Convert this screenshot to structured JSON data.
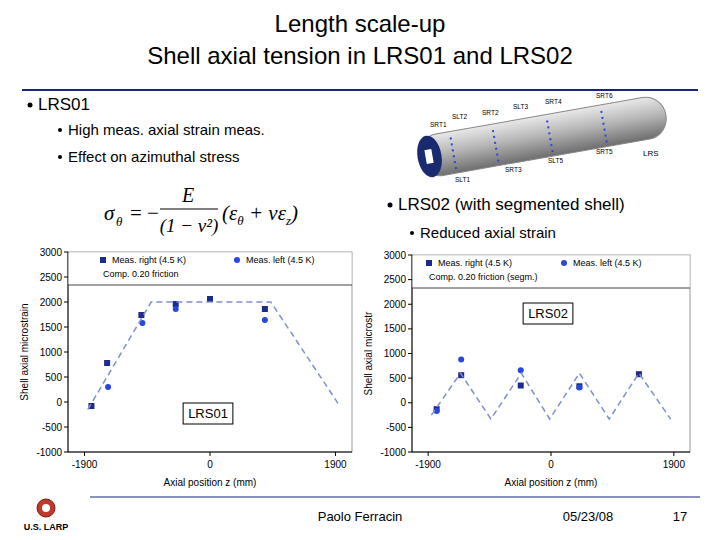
{
  "slide": {
    "title": [
      "Length scale-up",
      "Shell axial tension in LRS01 and LRS02"
    ],
    "bullets": [
      {
        "text": "LRS01",
        "sub": [
          "High meas. axial strain meas.",
          "Effect on azimuthal stress"
        ]
      },
      {
        "text": "LRS02 (with segmented shell)",
        "sub": [
          "Reduced axial strain"
        ]
      }
    ],
    "formula": {
      "lhs": "σ",
      "lhs_sub": "θ",
      "sign": "= −",
      "num": "E",
      "den": "(1 − ν²)",
      "rhs": [
        "(ε",
        "θ",
        " + νε",
        "z",
        ")"
      ]
    },
    "cylinder_labels": [
      "SRT1",
      "SLT2",
      "SRT2",
      "SLT3",
      "SRT4",
      "SRT6",
      "SLT1",
      "SRT3",
      "SLT5",
      "SRT5"
    ],
    "cylinder_tag": "LRS",
    "logo": "U.S. LARP",
    "author": "Paolo Ferracin",
    "date": "05/23/08",
    "page": "17"
  },
  "chart_data": [
    {
      "type": "scatter",
      "title": "LRS01",
      "x_label": "Axial position z (mm)",
      "y_label": "Shell axial microstrain",
      "xlim": [
        -2150,
        2150
      ],
      "xticks": [
        -1900,
        0,
        1900
      ],
      "ylim": [
        -1000,
        3000
      ],
      "yticks": [
        -1000,
        -500,
        0,
        500,
        1000,
        1500,
        2000,
        2500,
        3000
      ],
      "grid": false,
      "legend": "top",
      "series": [
        {
          "name": "Meas. right (4.5 K)",
          "color": "#1f2a8f",
          "marker": "square",
          "x": [
            -1795,
            -1558,
            -1039,
            -519,
            0,
            831
          ],
          "values": [
            -80,
            780,
            1740,
            1960,
            2060,
            1860
          ]
        },
        {
          "name": "Meas. left (4.5 K)",
          "color": "#2846e0",
          "marker": "circle",
          "x": [
            -1543,
            -1024,
            -519,
            831
          ],
          "values": [
            300,
            1580,
            1860,
            1640
          ]
        },
        {
          "name": "Comp. 0.20 friction",
          "type": "line",
          "line_style": "dashed",
          "color": "#7f8fd0",
          "x": [
            -1850,
            -890,
            920,
            1950
          ],
          "values": [
            -150,
            2000,
            2000,
            -50
          ]
        }
      ]
    },
    {
      "type": "scatter",
      "title": "LRS02",
      "x_label": "Axial position z (mm)",
      "y_label": "Shell axial microstr",
      "xlim": [
        -2150,
        2150
      ],
      "xticks": [
        -1900,
        0,
        1900
      ],
      "ylim": [
        -1000,
        3000
      ],
      "yticks": [
        -1000,
        -500,
        0,
        500,
        1000,
        1500,
        2000,
        2500,
        3000
      ],
      "grid": false,
      "legend": "top",
      "series": [
        {
          "name": "Meas. right (4.5 K)",
          "color": "#1f2a8f",
          "marker": "square",
          "x": [
            -1769,
            -1389,
            -468,
            439,
            1360
          ],
          "values": [
            -130,
            560,
            350,
            335,
            580
          ]
        },
        {
          "name": "Meas. left (4.5 K)",
          "color": "#2846e0",
          "marker": "circle",
          "x": [
            -1769,
            -1389,
            -468,
            439
          ],
          "values": [
            -170,
            880,
            660,
            310
          ]
        },
        {
          "name": "Comp. 0.20 friction (segm.)",
          "type": "line",
          "line_style": "dashed",
          "color": "#7f8fd0",
          "x": [
            -1850,
            -1400,
            -930,
            -460,
            -20,
            440,
            900,
            1360,
            1850
          ],
          "values": [
            -250,
            600,
            -330,
            600,
            -330,
            600,
            -330,
            600,
            -330
          ]
        }
      ]
    }
  ]
}
